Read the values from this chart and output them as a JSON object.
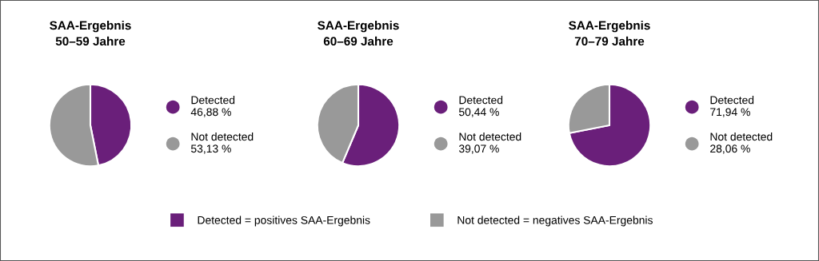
{
  "chart_data": [
    {
      "type": "pie",
      "title": "SAA-Ergebnis\n50–59 Jahre",
      "categories": [
        "Detected",
        "Not detected"
      ],
      "values": [
        46.88,
        53.13
      ],
      "value_labels": [
        "46,88 %",
        "53,13 %"
      ],
      "colors": [
        "#6a1f7a",
        "#999999"
      ],
      "legend": "right",
      "annotations": [
        "Detected = positives SAA-Ergebnis",
        "Not detected = negatives SAA-Ergebnis"
      ]
    },
    {
      "type": "pie",
      "title": "SAA-Ergebnis\n60–69 Jahre",
      "categories": [
        "Detected",
        "Not detected"
      ],
      "values": [
        50.44,
        39.07
      ],
      "value_labels": [
        "50,44 %",
        "39,07 %"
      ],
      "colors": [
        "#6a1f7a",
        "#999999"
      ],
      "legend": "right"
    },
    {
      "type": "pie",
      "title": "SAA-Ergebnis\n70–79 Jahre",
      "categories": [
        "Detected",
        "Not detected"
      ],
      "values": [
        71.94,
        28.06
      ],
      "value_labels": [
        "71,94 %",
        "28,06 %"
      ],
      "colors": [
        "#6a1f7a",
        "#999999"
      ],
      "legend": "right"
    }
  ]
}
